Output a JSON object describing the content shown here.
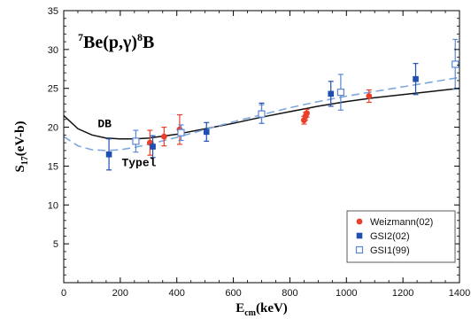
{
  "chart_data": {
    "type": "scatter",
    "title": "7Be(p,γ)8B",
    "title_parts": {
      "pre_sup": "7",
      "main": "Be(p,γ)",
      "mid_sup": "8",
      "end": "B"
    },
    "xlabel": {
      "main": "E",
      "sub": "cm",
      "rest": "(keV)"
    },
    "ylabel": {
      "main": "S",
      "sub": "17",
      "rest": "(eV-b)"
    },
    "xlim": [
      0,
      1400
    ],
    "ylim": [
      0,
      35
    ],
    "x_ticks": [
      0,
      200,
      400,
      600,
      800,
      1000,
      1200,
      1400
    ],
    "y_ticks": [
      5,
      10,
      15,
      20,
      25,
      30,
      35
    ],
    "grid": false,
    "legend_position": "bottom-right",
    "series": [
      {
        "name": "Weizmann(02)",
        "marker": "circle",
        "color": "#e8402a",
        "points": [
          {
            "x": 305,
            "y": 18.0,
            "err": 1.6
          },
          {
            "x": 355,
            "y": 18.8,
            "err": 1.2
          },
          {
            "x": 410,
            "y": 19.7,
            "err": 1.9
          },
          {
            "x": 850,
            "y": 20.9,
            "err": 0.5
          },
          {
            "x": 855,
            "y": 21.4,
            "err": 0.5
          },
          {
            "x": 860,
            "y": 21.8,
            "err": 0.5
          },
          {
            "x": 1080,
            "y": 24.0,
            "err": 0.8
          }
        ]
      },
      {
        "name": "GSI2(02)",
        "marker": "square-filled",
        "color": "#1f4fb0",
        "points": [
          {
            "x": 160,
            "y": 16.5,
            "err": 2.0
          },
          {
            "x": 315,
            "y": 17.5,
            "err": 1.4
          },
          {
            "x": 505,
            "y": 19.4,
            "err": 1.2
          },
          {
            "x": 700,
            "y": 21.8,
            "err": 1.3
          },
          {
            "x": 945,
            "y": 24.3,
            "err": 1.6
          },
          {
            "x": 1245,
            "y": 26.2,
            "err": 2.0
          }
        ]
      },
      {
        "name": "GSI1(99)",
        "marker": "square-open",
        "color": "#5b86d6",
        "points": [
          {
            "x": 255,
            "y": 18.2,
            "err": 1.4
          },
          {
            "x": 415,
            "y": 19.3,
            "err": 1.0
          },
          {
            "x": 700,
            "y": 21.7,
            "err": 1.2
          },
          {
            "x": 980,
            "y": 24.5,
            "err": 2.3
          },
          {
            "x": 1385,
            "y": 28.1,
            "err": 3.2
          }
        ]
      }
    ],
    "curves": [
      {
        "name": "DB",
        "style": "solid",
        "color": "#111111",
        "x": [
          0,
          50,
          100,
          150,
          200,
          250,
          300,
          400,
          500,
          600,
          700,
          800,
          900,
          1000,
          1100,
          1200,
          1300,
          1400
        ],
        "y": [
          21.5,
          19.8,
          19.0,
          18.6,
          18.5,
          18.5,
          18.6,
          19.1,
          19.8,
          20.5,
          21.3,
          22.0,
          22.7,
          23.3,
          23.8,
          24.2,
          24.6,
          25.0
        ]
      },
      {
        "name": "Typel",
        "style": "dashed",
        "color": "#7ea8dc",
        "x": [
          0,
          50,
          100,
          150,
          200,
          250,
          300,
          400,
          500,
          600,
          700,
          800,
          900,
          1000,
          1100,
          1200,
          1300,
          1400
        ],
        "y": [
          18.8,
          17.6,
          17.1,
          17.0,
          17.1,
          17.4,
          17.8,
          18.7,
          19.7,
          20.7,
          21.6,
          22.5,
          23.3,
          24.0,
          24.6,
          25.2,
          25.8,
          26.4
        ]
      }
    ],
    "annotations": [
      {
        "text": "DB",
        "x": 120,
        "y": 20.0
      },
      {
        "text": "Typel",
        "x": 205,
        "y": 15.0
      }
    ]
  }
}
